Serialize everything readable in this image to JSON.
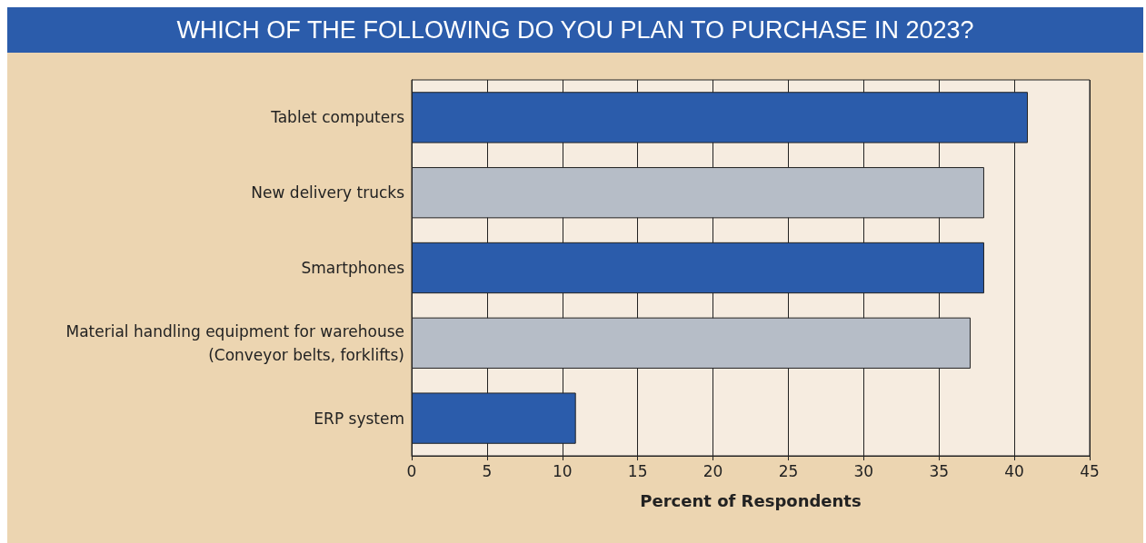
{
  "chart_data": {
    "type": "bar",
    "orientation": "horizontal",
    "title": "WHICH OF THE FOLLOWING DO YOU PLAN TO PURCHASE IN 2023?",
    "xlabel": "Percent of Respondents",
    "categories": [
      "Tablet computers",
      "New delivery trucks",
      "Smartphones",
      "Material handling equipment for warehouse\n(Conveyor belts, forklifts)",
      "ERP system"
    ],
    "values": [
      40.9,
      38,
      38,
      37.1,
      10.9
    ],
    "colors": [
      "#2b5cab",
      "#b6bdc7",
      "#2b5cab",
      "#b6bdc7",
      "#2b5cab"
    ],
    "xlim": [
      0,
      45
    ],
    "xticks": [
      0,
      5,
      10,
      15,
      20,
      25,
      30,
      35,
      40,
      45
    ],
    "grid": "x"
  }
}
